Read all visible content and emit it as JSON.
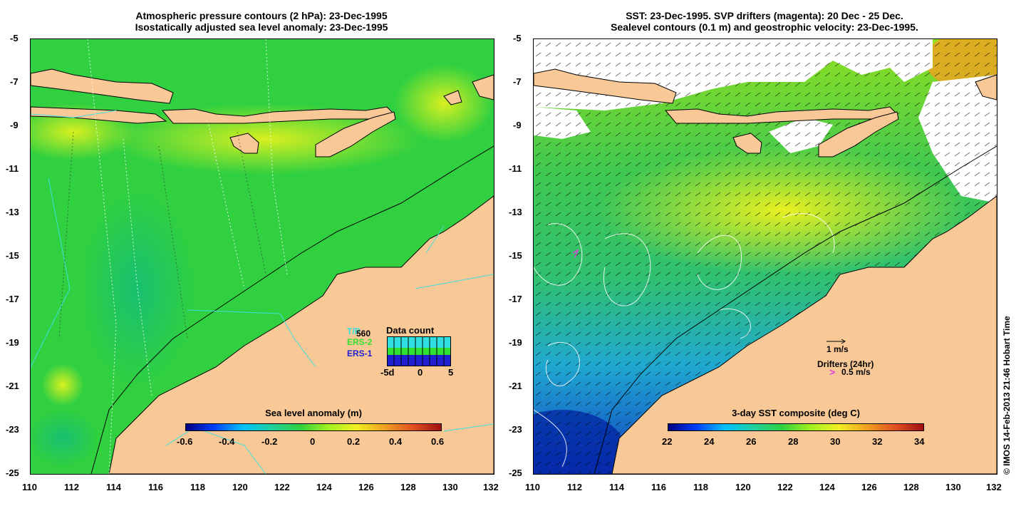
{
  "left_panel": {
    "title_line1": "Atmospheric pressure contours (2 hPa): 23-Dec-1995",
    "title_line2": "Isostatically adjusted sea level anomaly: 23-Dec-1995",
    "colorbar_title": "Sea level anomaly (m)",
    "colorbar_labels": [
      "-0.6",
      "-0.4",
      "-0.2",
      "0",
      "0.2",
      "0.4",
      "0.6"
    ],
    "x_ticks": [
      "110",
      "112",
      "114",
      "116",
      "118",
      "120",
      "122",
      "124",
      "126",
      "128",
      "130",
      "132"
    ],
    "y_ticks": [
      "-5",
      "-7",
      "-9",
      "-11",
      "-13",
      "-15",
      "-17",
      "-19",
      "-21",
      "-23",
      "-25"
    ],
    "satellites": {
      "topex": "T/P",
      "topex_count": "560",
      "ers2": "ERS-2",
      "ers1": "ERS-1"
    },
    "data_count": {
      "title": "Data count",
      "x_labels": [
        "-5d",
        "0",
        "5"
      ]
    }
  },
  "right_panel": {
    "title_line1": "SST: 23-Dec-1995. SVP drifters (magenta): 20 Dec - 25 Dec.",
    "title_line2": "Sealevel contours (0.1 m) and geostrophic velocity: 23-Dec-1995.",
    "colorbar_title": "3-day SST composite (deg C)",
    "colorbar_labels": [
      "22",
      "24",
      "26",
      "28",
      "30",
      "32",
      "34"
    ],
    "x_ticks": [
      "110",
      "112",
      "114",
      "116",
      "118",
      "120",
      "122",
      "124",
      "126",
      "128",
      "130",
      "132"
    ],
    "y_ticks": [
      "-5",
      "-7",
      "-9",
      "-11",
      "-13",
      "-15",
      "-17",
      "-19",
      "-21",
      "-23",
      "-25"
    ],
    "velocity_scale": "1 m/s",
    "drifters_label": "Drifters (24hr)",
    "drifters_scale": "0.5 m/s",
    "drifter_symbol": ">"
  },
  "credit": "© IMOS 14-Feb-2013 21:46 Hobart Time",
  "colors": {
    "land": "#f8c896",
    "sla_base": "#2fd040",
    "sst_base": "#3cc850",
    "coast_line": "#000000",
    "track_line": "#40e0e0",
    "magenta": "#e040e0",
    "ers2": "#30e030",
    "ers1": "#2020d0",
    "topex": "#30e0e0"
  }
}
